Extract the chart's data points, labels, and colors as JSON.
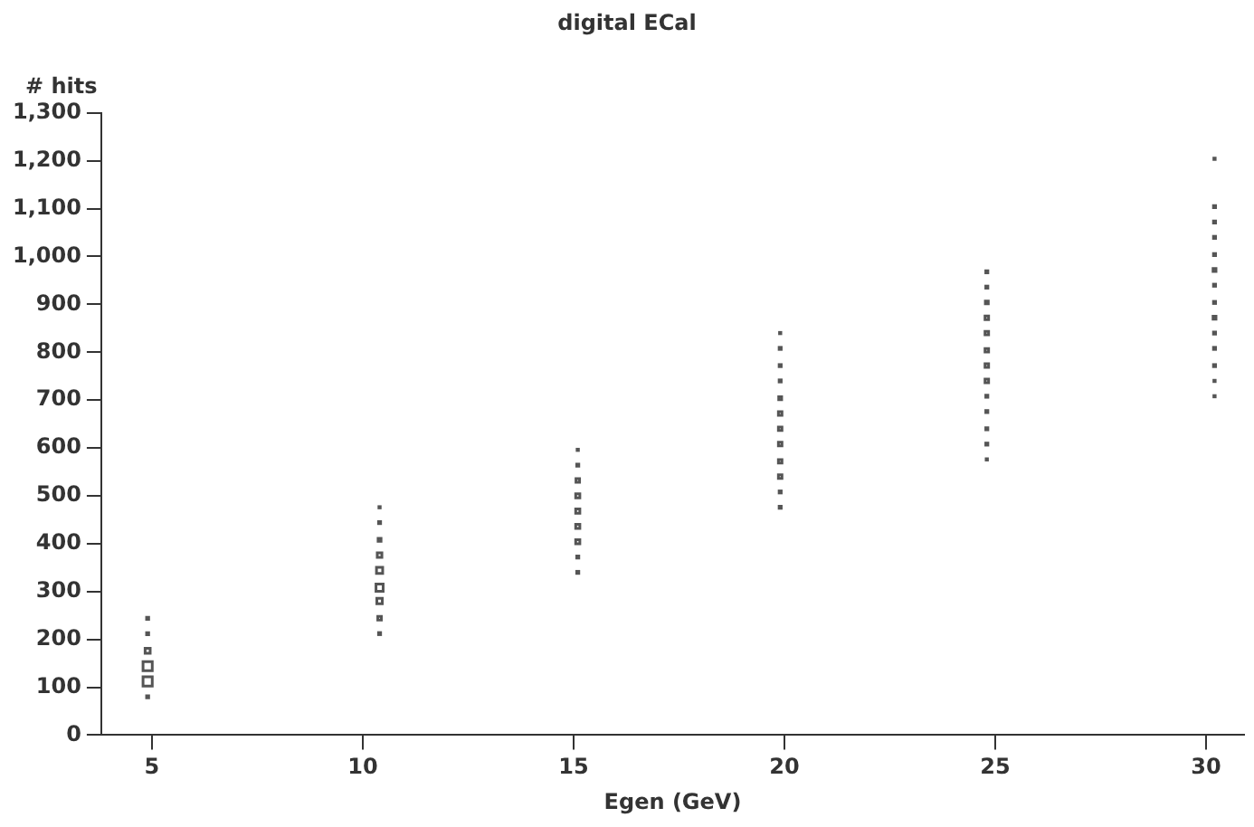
{
  "chart_data": {
    "type": "bubble",
    "title": "digital ECal",
    "xlabel": "Egen (GeV)",
    "ylabel": "# hits",
    "x": [
      4.9,
      4.9,
      4.9,
      4.9,
      4.9,
      4.9,
      10.4,
      10.4,
      10.4,
      10.4,
      10.4,
      10.4,
      10.4,
      10.4,
      10.4,
      15.1,
      15.1,
      15.1,
      15.1,
      15.1,
      15.1,
      15.1,
      15.1,
      15.1,
      19.9,
      19.9,
      19.9,
      19.9,
      19.9,
      19.9,
      19.9,
      19.9,
      19.9,
      19.9,
      19.9,
      19.9,
      24.8,
      24.8,
      24.8,
      24.8,
      24.8,
      24.8,
      24.8,
      24.8,
      24.8,
      24.8,
      24.8,
      24.8,
      24.8,
      30.2,
      30.2,
      30.2,
      30.2,
      30.2,
      30.2,
      30.2,
      30.2,
      30.2,
      30.2,
      30.2,
      30.2,
      30.2,
      30.2
    ],
    "values": [
      80,
      112,
      144,
      176,
      212,
      244,
      212,
      244,
      280,
      308,
      344,
      376,
      408,
      444,
      476,
      340,
      372,
      404,
      436,
      468,
      500,
      532,
      564,
      596,
      476,
      508,
      540,
      572,
      608,
      640,
      672,
      704,
      740,
      772,
      808,
      840,
      576,
      608,
      640,
      676,
      708,
      740,
      772,
      804,
      840,
      872,
      904,
      936,
      968,
      708,
      740,
      772,
      808,
      840,
      872,
      904,
      940,
      972,
      1004,
      1040,
      1072,
      1104,
      1204
    ],
    "sizes": [
      0.05,
      1,
      1,
      0.3,
      0.05,
      0.05,
      0.05,
      0.15,
      0.35,
      0.6,
      0.45,
      0.25,
      0.1,
      0.05,
      0.02,
      0.05,
      0.05,
      0.2,
      0.2,
      0.2,
      0.2,
      0.15,
      0.05,
      0.02,
      0.05,
      0.05,
      0.15,
      0.15,
      0.15,
      0.15,
      0.15,
      0.1,
      0.05,
      0.05,
      0.05,
      0.02,
      0.02,
      0.05,
      0.05,
      0.05,
      0.05,
      0.15,
      0.15,
      0.15,
      0.15,
      0.15,
      0.1,
      0.05,
      0.05,
      0.02,
      0.02,
      0.05,
      0.05,
      0.05,
      0.1,
      0.05,
      0.05,
      0.1,
      0.05,
      0.05,
      0.05,
      0.05,
      0.02
    ],
    "color": "#555555",
    "marker": "square",
    "xlim": [
      3.8,
      30.9
    ],
    "xticks": [
      5,
      10,
      15,
      20,
      25,
      30
    ],
    "ylim": [
      0,
      1300
    ],
    "yticks": [
      0,
      100,
      200,
      300,
      400,
      500,
      600,
      700,
      800,
      900,
      {
        "value": 1000,
        "label": "1,000"
      },
      {
        "value": 1100,
        "label": "1,100"
      },
      {
        "value": 1200,
        "label": "1,200"
      },
      {
        "value": 1300,
        "label": "1,300"
      }
    ],
    "grid": false,
    "legend": false
  }
}
